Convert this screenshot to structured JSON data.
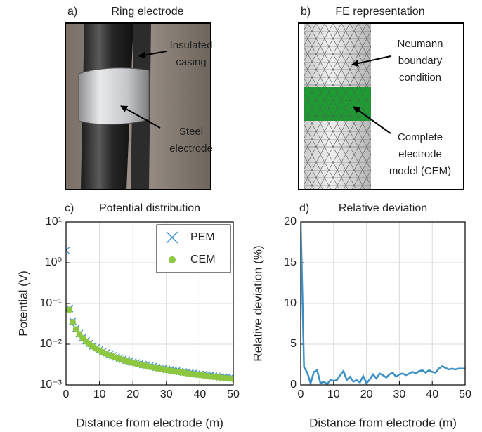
{
  "panels": [
    {
      "label": "a)",
      "title": "Ring electrode",
      "annotations": [
        [
          "Insulated",
          "casing"
        ],
        [
          "Steel",
          "electrode"
        ]
      ]
    },
    {
      "label": "b)",
      "title": "FE representation",
      "annotations": [
        [
          "Neumann",
          "boundary",
          "condition"
        ],
        [
          "Complete",
          "electrode",
          "model (CEM)"
        ]
      ]
    }
  ],
  "chart_data": [
    {
      "type": "scatter",
      "panel_label": "c)",
      "title": "Potential distribution",
      "x_label": "Distance from electrode (m)",
      "y_label": "Potential (V)",
      "log_y": true,
      "grid": true,
      "legend": "upper right",
      "xlim": [
        0,
        50
      ],
      "xticks": [
        0,
        10,
        20,
        30,
        40,
        50
      ],
      "ylim": [
        0.001,
        10
      ],
      "yticks": [
        {
          "value": 0.001,
          "label": "10⁻³"
        },
        {
          "value": 0.01,
          "label": "10⁻²"
        },
        {
          "value": 0.1,
          "label": "10⁻¹"
        },
        {
          "value": 1,
          "label": "10⁰"
        },
        {
          "value": 10,
          "label": "10¹"
        }
      ],
      "x": [
        0,
        1,
        2,
        3,
        4,
        5,
        6,
        7,
        8,
        9,
        10,
        11,
        12,
        13,
        14,
        15,
        16,
        17,
        18,
        19,
        20,
        21,
        22,
        23,
        24,
        25,
        26,
        27,
        28,
        29,
        30,
        31,
        32,
        33,
        34,
        35,
        36,
        37,
        38,
        39,
        40,
        41,
        42,
        43,
        44,
        45,
        46,
        47,
        48,
        49,
        50
      ],
      "series": [
        {
          "name": "PEM",
          "marker": "x",
          "color": "#3a8fc7",
          "values": [
            2,
            0.075,
            0.037,
            0.0245,
            0.0183,
            0.0146,
            0.0122,
            0.0104,
            0.0091,
            0.0081,
            0.0073,
            0.00662,
            0.00606,
            0.0056,
            0.0052,
            0.00486,
            0.00455,
            0.00429,
            0.00405,
            0.00383,
            0.00364,
            0.00347,
            0.00331,
            0.00316,
            0.00304,
            0.00291,
            0.0028,
            0.0027,
            0.0026,
            0.00251,
            0.00242,
            0.00235,
            0.00228,
            0.00221,
            0.00214,
            0.00208,
            0.00202,
            0.00197,
            0.00191,
            0.00186,
            0.00182,
            0.00178,
            0.00174,
            0.0017,
            0.00165,
            0.00162,
            0.00158,
            0.00155,
            0.00152,
            0.00149,
            0.00146
          ]
        },
        {
          "name": "CEM",
          "marker": "o",
          "color": "#8dc63f",
          "values": [
            null,
            0.07,
            0.035,
            0.0233,
            0.0175,
            0.014,
            0.0117,
            0.01,
            0.00875,
            0.00778,
            0.007,
            0.00636,
            0.00583,
            0.00538,
            0.005,
            0.00467,
            0.00438,
            0.00412,
            0.00389,
            0.00368,
            0.0035,
            0.00333,
            0.00318,
            0.00304,
            0.00292,
            0.0028,
            0.00269,
            0.00259,
            0.0025,
            0.00241,
            0.00233,
            0.00226,
            0.00219,
            0.00212,
            0.00206,
            0.002,
            0.00194,
            0.00189,
            0.00184,
            0.00179,
            0.00175,
            0.00171,
            0.00167,
            0.00163,
            0.00159,
            0.00156,
            0.00152,
            0.00149,
            0.00146,
            0.00143,
            0.0014
          ]
        }
      ]
    },
    {
      "type": "line",
      "panel_label": "d)",
      "title": "Relative deviation",
      "x_label": "Distance from electrode (m)",
      "y_label": "Relative deviation (%)",
      "grid": true,
      "xlim": [
        0,
        50
      ],
      "xticks": [
        0,
        10,
        20,
        30,
        40,
        50
      ],
      "ylim": [
        0,
        20
      ],
      "yticks": [
        0,
        5,
        10,
        15,
        20
      ],
      "x": [
        0,
        1,
        2,
        3,
        4,
        5,
        6,
        7,
        8,
        9,
        10,
        11,
        12,
        13,
        14,
        15,
        16,
        17,
        18,
        19,
        20,
        21,
        22,
        23,
        24,
        25,
        26,
        27,
        28,
        29,
        30,
        31,
        32,
        33,
        34,
        35,
        36,
        37,
        38,
        39,
        40,
        41,
        42,
        43,
        44,
        45,
        46,
        47,
        48,
        49,
        50
      ],
      "series": [
        {
          "color": "#3a8fc7",
          "values": [
            20,
            2.2,
            1.5,
            0.2,
            1.6,
            1.8,
            0.2,
            0.4,
            0.1,
            0.6,
            0.5,
            0.6,
            1.2,
            1.7,
            0.6,
            1.0,
            0.4,
            0.6,
            0.3,
            1.1,
            0.2,
            0.7,
            1.3,
            0.8,
            1.4,
            1.2,
            0.9,
            1.3,
            1.5,
            1.0,
            1.3,
            1.4,
            1.2,
            1.4,
            1.6,
            1.4,
            1.7,
            1.8,
            1.5,
            1.8,
            1.6,
            1.5,
            2.0,
            2.3,
            2.1,
            1.9,
            2.0,
            1.9,
            2.0,
            2.0,
            2.0
          ]
        }
      ]
    }
  ]
}
